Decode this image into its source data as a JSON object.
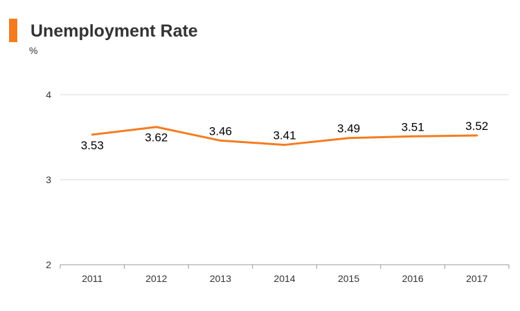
{
  "title": "Unemployment Rate",
  "unit": "%",
  "colors": {
    "accent": "#f47c20",
    "line": "#f47c20",
    "grid": "#d9d9d9",
    "axis": "#999999"
  },
  "chart_data": {
    "type": "line",
    "title": "Unemployment Rate",
    "ylabel": "%",
    "xlabel": "",
    "categories": [
      "2011",
      "2012",
      "2013",
      "2014",
      "2015",
      "2016",
      "2017"
    ],
    "series": [
      {
        "values": [
          3.53,
          3.62,
          3.46,
          3.41,
          3.49,
          3.51,
          3.52
        ]
      }
    ],
    "data_labels": [
      "3.53",
      "3.62",
      "3.46",
      "3.41",
      "3.49",
      "3.51",
      "3.52"
    ],
    "ylim": [
      2,
      4
    ],
    "yticks": [
      2,
      3,
      4
    ],
    "ytick_labels": [
      "2",
      "3",
      "4"
    ],
    "grid": true,
    "legend": "none"
  }
}
